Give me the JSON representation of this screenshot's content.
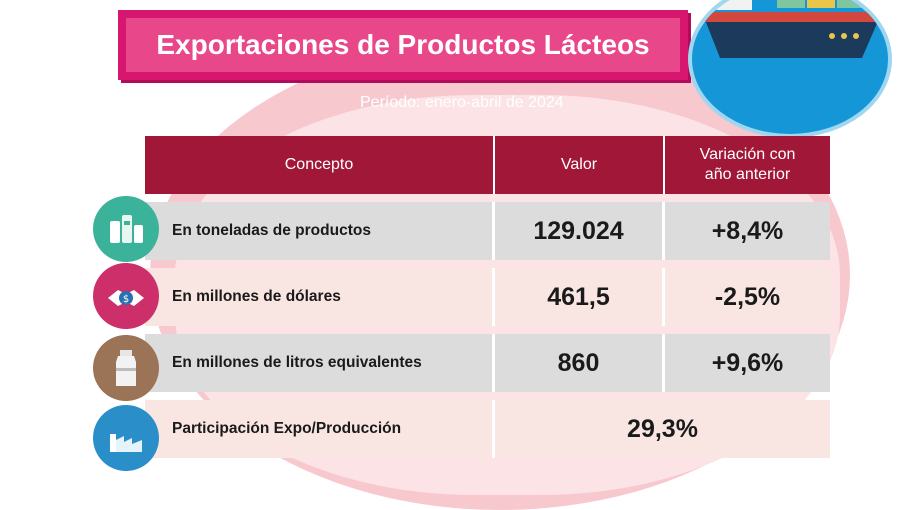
{
  "title": "Exportaciones de Productos Lácteos",
  "period": "Período: enero-abril de 2024",
  "table": {
    "headers": {
      "concepto": "Concepto",
      "valor": "Valor",
      "variacion_line1": "Variación con",
      "variacion_line2": "año anterior"
    },
    "rows": [
      {
        "concept": "En toneladas de productos",
        "value": "129.024",
        "variation": "+8,4%",
        "icon": "dairy-products-icon"
      },
      {
        "concept": "En millones de dólares",
        "value": "461,5",
        "variation": "-2,5%",
        "icon": "handshake-money-icon"
      },
      {
        "concept": "En millones de litros equivalentes",
        "value": "860",
        "variation": "+9,6%",
        "icon": "milk-can-icon"
      },
      {
        "concept": "Participación Expo/Producción",
        "value": "29,3%",
        "icon": "factory-icon"
      }
    ]
  },
  "colors": {
    "title_bg": "#e8478a",
    "header_bg": "#a01738",
    "row_gray": "#dcdcdc",
    "row_pink": "#f9e6e2",
    "ship_circle": "#1596d6"
  }
}
